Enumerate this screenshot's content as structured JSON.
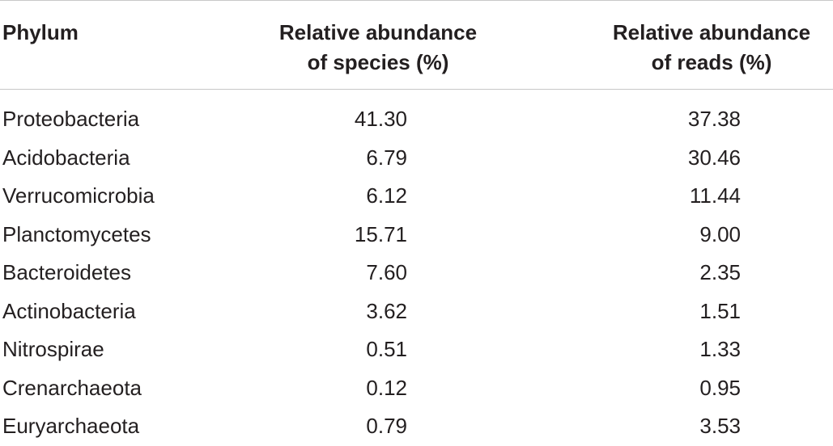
{
  "table": {
    "headers": {
      "phylum": "Phylum",
      "species_line1": "Relative abundance",
      "species_line2": "of species (%)",
      "reads_line1": "Relative abundance",
      "reads_line2": "of reads (%)"
    },
    "rows": [
      {
        "phylum": "Proteobacteria",
        "species": "41.30",
        "reads": "37.38"
      },
      {
        "phylum": "Acidobacteria",
        "species": "6.79",
        "reads": "30.46"
      },
      {
        "phylum": "Verrucomicrobia",
        "species": "6.12",
        "reads": "11.44"
      },
      {
        "phylum": "Planctomycetes",
        "species": "15.71",
        "reads": "9.00"
      },
      {
        "phylum": "Bacteroidetes",
        "species": "7.60",
        "reads": "2.35"
      },
      {
        "phylum": "Actinobacteria",
        "species": "3.62",
        "reads": "1.51"
      },
      {
        "phylum": "Nitrospirae",
        "species": "0.51",
        "reads": "1.33"
      },
      {
        "phylum": "Crenarchaeota",
        "species": "0.12",
        "reads": "0.95"
      },
      {
        "phylum": "Euryarchaeota",
        "species": "0.79",
        "reads": "3.53"
      }
    ]
  }
}
